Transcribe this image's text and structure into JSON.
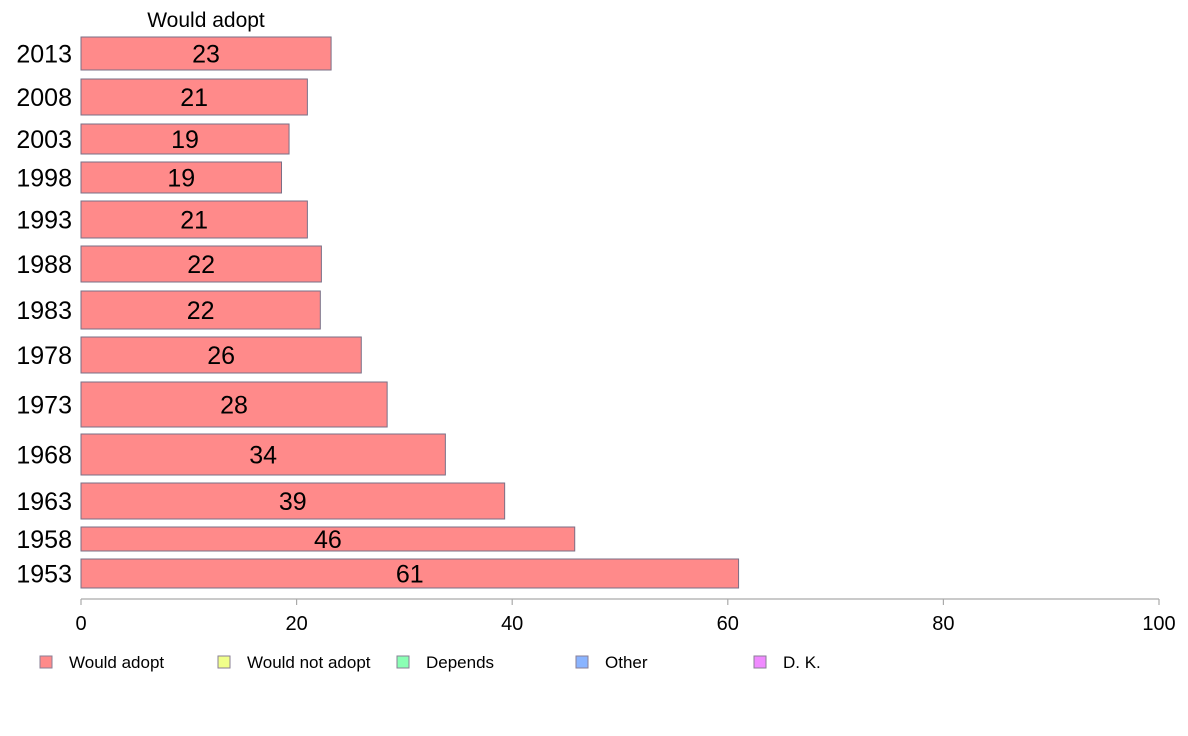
{
  "chart_data": {
    "type": "bar",
    "orientation": "horizontal",
    "series_header": "Would adopt",
    "categories": [
      "2013",
      "2008",
      "2003",
      "1998",
      "1993",
      "1988",
      "1983",
      "1978",
      "1973",
      "1968",
      "1963",
      "1958",
      "1953"
    ],
    "series": [
      {
        "name": "Would adopt",
        "color": "#ff8a8a",
        "values": [
          23.2,
          21.0,
          19.3,
          18.6,
          21.0,
          22.3,
          22.2,
          26.0,
          28.4,
          33.8,
          39.3,
          45.8,
          61.0
        ],
        "labels": [
          "23",
          "21",
          "19",
          "19",
          "21",
          "22",
          "22",
          "26",
          "28",
          "34",
          "39",
          "46",
          "61"
        ]
      }
    ],
    "xlim": [
      0,
      100
    ],
    "xticks": [
      0,
      20,
      40,
      60,
      80,
      100
    ],
    "grid": false,
    "legend_position": "bottom",
    "legend": [
      {
        "name": "Would adopt",
        "color": "#ff8a8a"
      },
      {
        "name": "Would not adopt",
        "color": "#f0ff8a"
      },
      {
        "name": "Depends",
        "color": "#8affb4"
      },
      {
        "name": "Other",
        "color": "#8ab4ff"
      },
      {
        "name": "D. K.",
        "color": "#f08aff"
      }
    ]
  }
}
